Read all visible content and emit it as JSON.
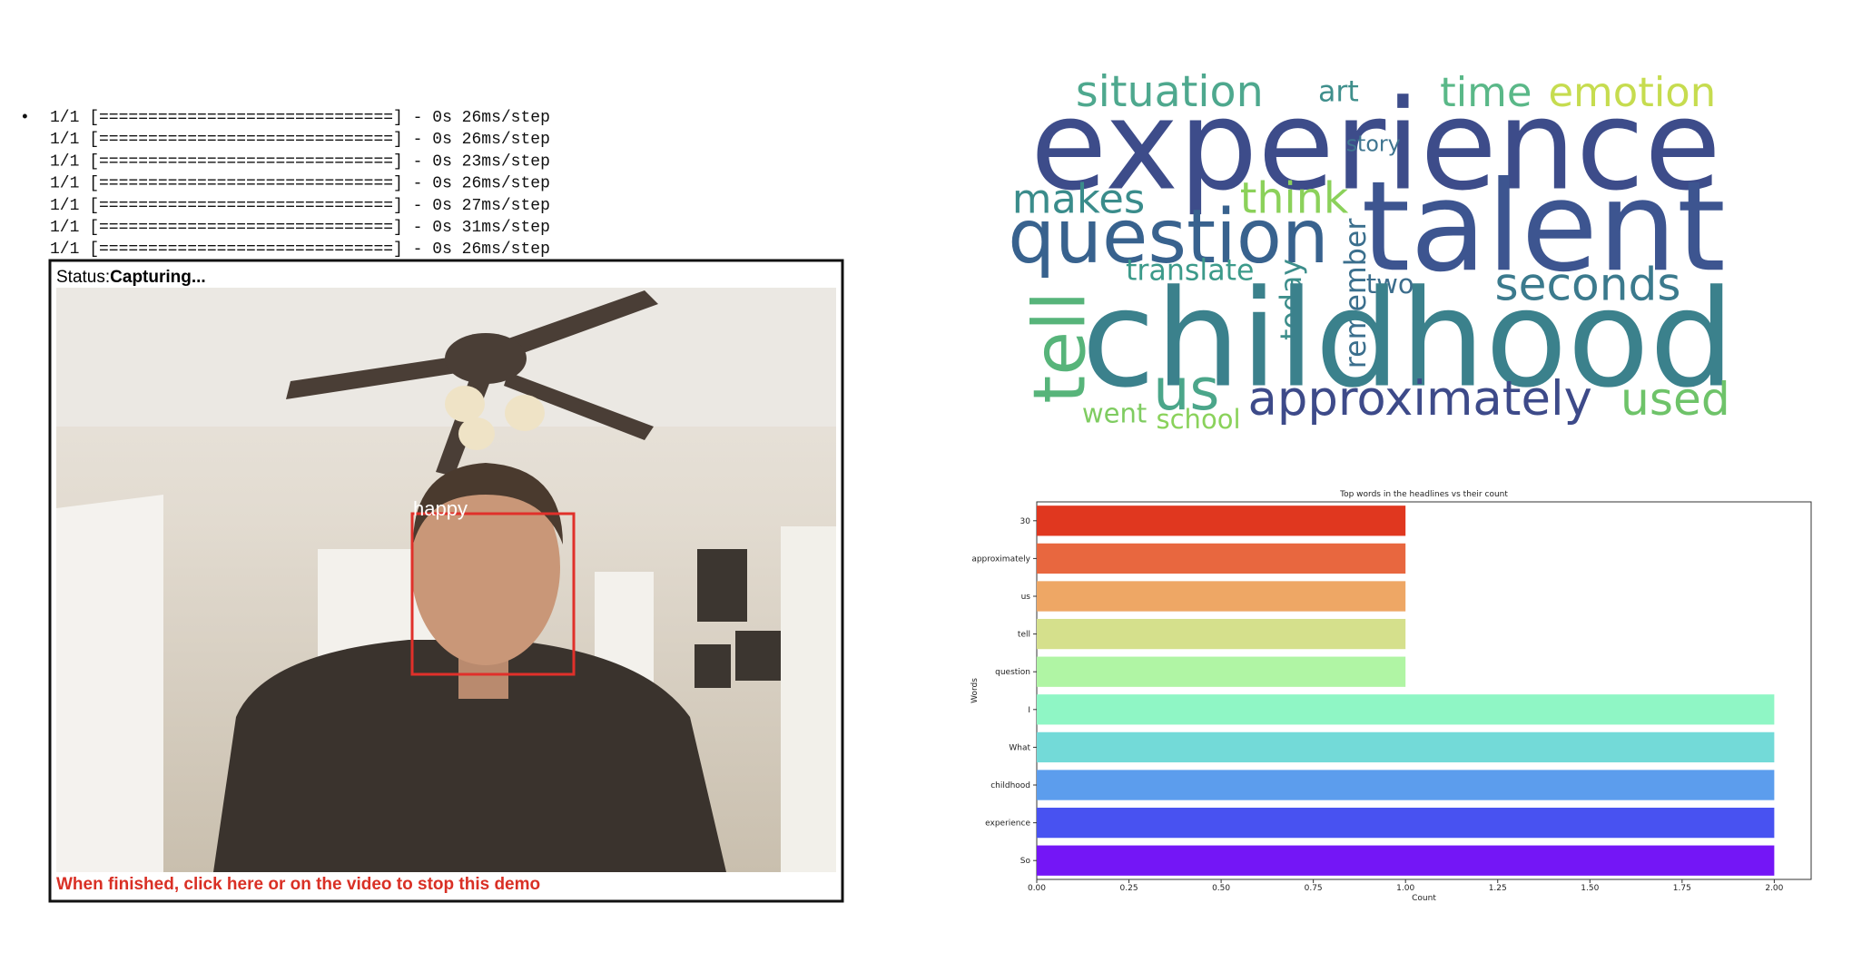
{
  "log_lines": [
    "1/1 [==============================] - 0s 26ms/step",
    "1/1 [==============================] - 0s 26ms/step",
    "1/1 [==============================] - 0s 23ms/step",
    "1/1 [==============================] - 0s 26ms/step",
    "1/1 [==============================] - 0s 27ms/step",
    "1/1 [==============================] - 0s 31ms/step",
    "1/1 [==============================] - 0s 26ms/step"
  ],
  "video": {
    "status_label": "Status:",
    "status_value": "Capturing...",
    "emotion_label": "happy",
    "stop_text": "When finished, click here or on the video to stop this demo"
  },
  "word_cloud": {
    "words": [
      "situation",
      "art",
      "time",
      "emotion",
      "experience",
      "story",
      "makes",
      "think",
      "question",
      "talent",
      "translate",
      "two",
      "seconds",
      "tell",
      "today",
      "remember",
      "childhood",
      "us",
      "approximately",
      "used",
      "went",
      "school"
    ]
  },
  "chart_data": {
    "type": "bar",
    "orientation": "horizontal",
    "title": "Top words in the headlines vs their count",
    "x_label": "Count",
    "y_label": "Words",
    "categories": [
      "30",
      "approximately",
      "us",
      "tell",
      "question",
      "I",
      "What",
      "childhood",
      "experience",
      "So"
    ],
    "values": [
      1,
      1,
      1,
      1,
      1,
      2,
      2,
      2,
      2,
      2
    ],
    "colors": [
      "#e0371f",
      "#e8673f",
      "#eea765",
      "#d5e08c",
      "#b0f5a4",
      "#8ff6c5",
      "#73dad8",
      "#5c9ded",
      "#4852f1",
      "#7416f6"
    ],
    "xlim": [
      0,
      2.1
    ],
    "xticks": [
      {
        "value": 0,
        "label": "0.00"
      },
      {
        "value": 0.25,
        "label": "0.25"
      },
      {
        "value": 0.5,
        "label": "0.50"
      },
      {
        "value": 0.75,
        "label": "0.75"
      },
      {
        "value": 1,
        "label": "1.00"
      },
      {
        "value": 1.25,
        "label": "1.25"
      },
      {
        "value": 1.5,
        "label": "1.50"
      },
      {
        "value": 1.75,
        "label": "1.75"
      },
      {
        "value": 2,
        "label": "2.00"
      }
    ]
  }
}
